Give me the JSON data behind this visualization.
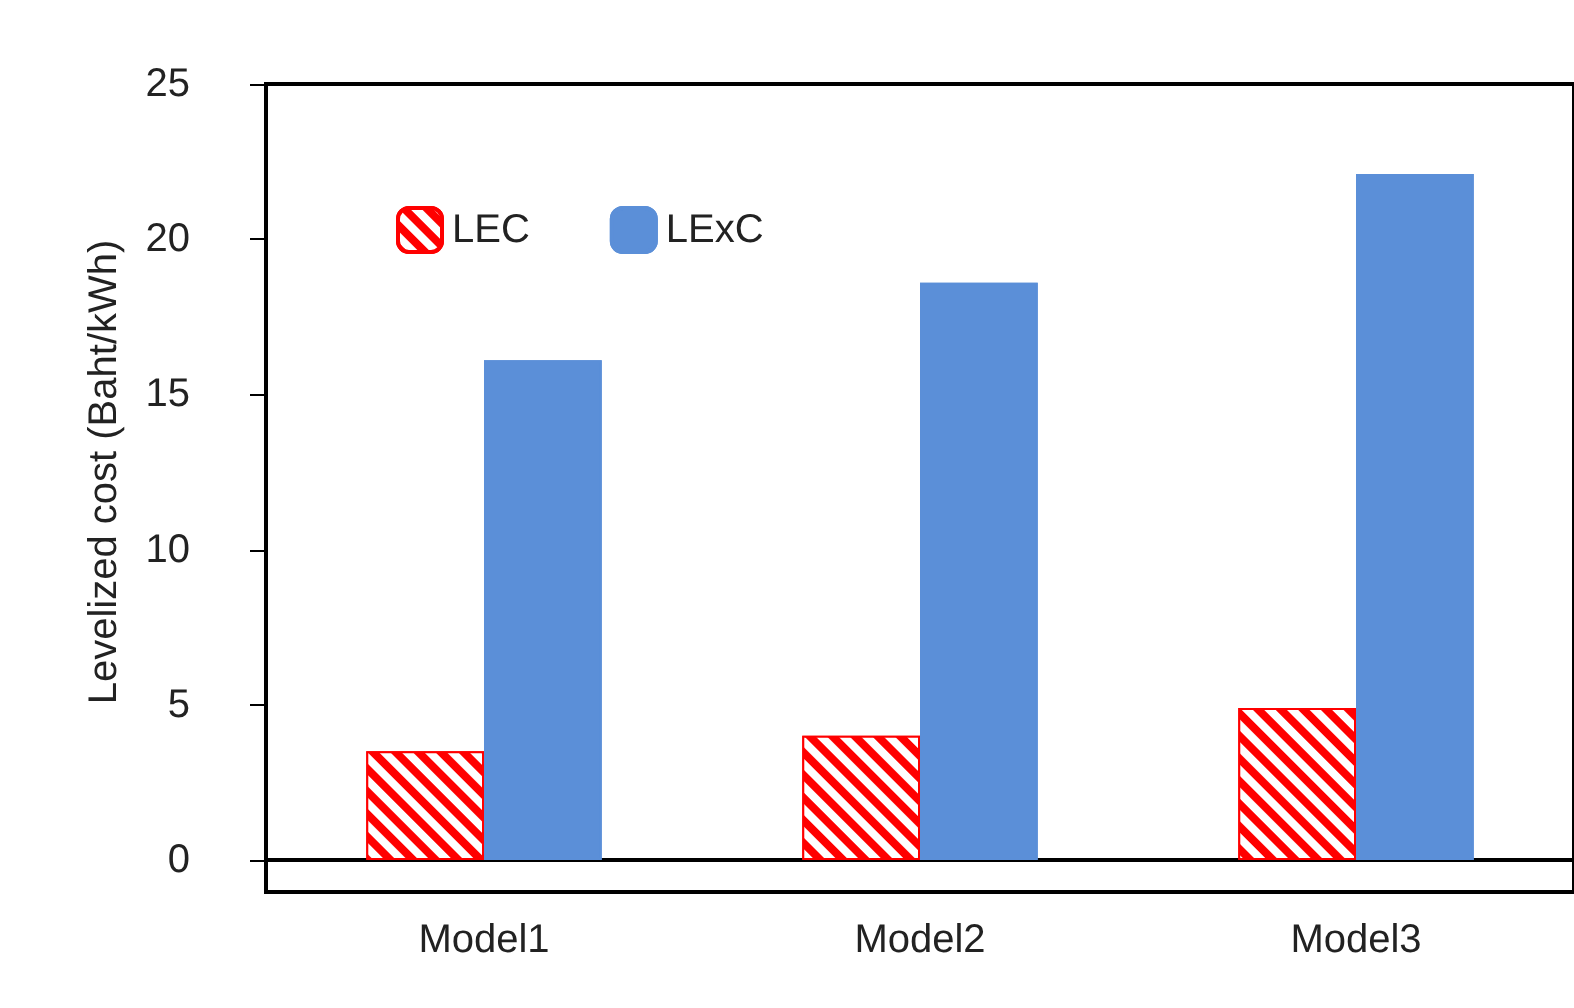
{
  "chart_data": {
    "type": "bar",
    "ylabel": "Levelized cost (Baht/kWh)",
    "categories": [
      "Model1",
      "Model2",
      "Model3"
    ],
    "series": [
      {
        "name": "LEC",
        "color": "#ff0000",
        "values": [
          3.5,
          4.0,
          4.9
        ]
      },
      {
        "name": "LExC",
        "color": "#5b8fd8",
        "values": [
          16.1,
          18.6,
          22.1
        ]
      }
    ],
    "ylim": [
      0,
      25
    ],
    "yticks": [
      0,
      5,
      10,
      15,
      20,
      25
    ],
    "grid": false,
    "legend": "top left"
  }
}
